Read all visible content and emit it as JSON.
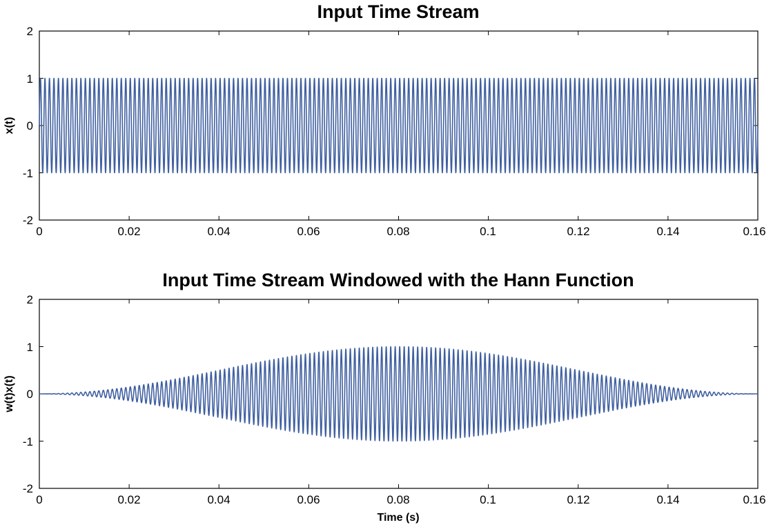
{
  "chart_data": [
    {
      "type": "line",
      "title": "Input Time Stream",
      "xlabel": "",
      "ylabel": "x(t)",
      "xlim": [
        0,
        0.16
      ],
      "ylim": [
        -2,
        2
      ],
      "xticks": [
        "0",
        "0.02",
        "0.04",
        "0.06",
        "0.08",
        "0.1",
        "0.12",
        "0.14",
        "0.16"
      ],
      "yticks": [
        "2",
        "1",
        "0",
        "-1",
        "-2"
      ],
      "grid": false,
      "series": [
        {
          "function": "sine",
          "amplitude": 1,
          "frequency_hz": 1000,
          "x_start": 0,
          "x_end": 0.16,
          "window": "none",
          "color": "#3f5fa0"
        }
      ]
    },
    {
      "type": "line",
      "title": "Input Time Stream Windowed with the Hann Function",
      "xlabel": "Time (s)",
      "ylabel": "w(t)x(t)",
      "xlim": [
        0,
        0.16
      ],
      "ylim": [
        -2,
        2
      ],
      "xticks": [
        "0",
        "0.02",
        "0.04",
        "0.06",
        "0.08",
        "0.1",
        "0.12",
        "0.14",
        "0.16"
      ],
      "yticks": [
        "2",
        "1",
        "0",
        "-1",
        "-2"
      ],
      "grid": false,
      "series": [
        {
          "function": "sine",
          "amplitude": 1,
          "frequency_hz": 1000,
          "x_start": 0,
          "x_end": 0.16,
          "window": "hann",
          "color": "#3f5fa0"
        }
      ]
    }
  ]
}
